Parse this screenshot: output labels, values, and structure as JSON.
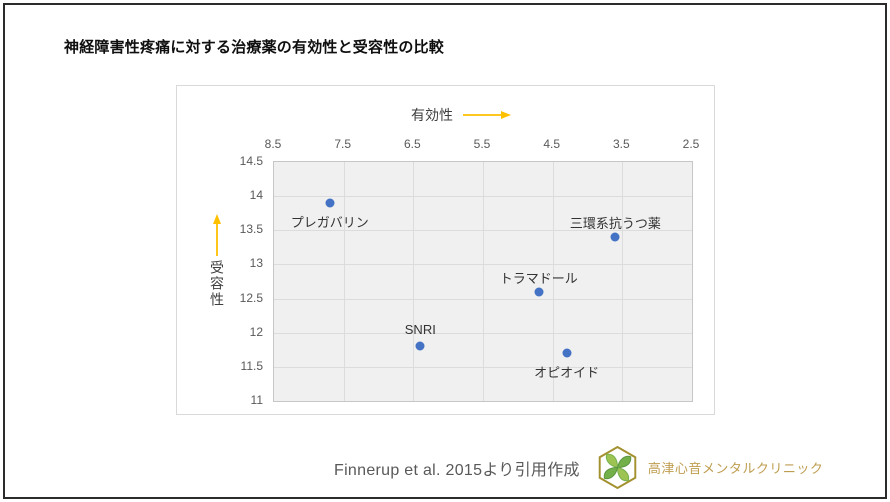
{
  "page": {
    "title": "神経障害性疼痛に対する治療薬の有効性と受容性の比較",
    "footer": {
      "source_text": "Finnerup et al. 2015より引用作成",
      "clinic_name": "高津心音メンタルクリニック"
    }
  },
  "colors": {
    "point": "#4472C4",
    "arrow": "#FFC000",
    "axis_text": "#595959",
    "plot_bg": "#f0f0f0",
    "gridline": "#dcdcdc",
    "chart_border": "#d9d9d9",
    "logo_gold": "#a3912f",
    "logo_green_light": "#9dc353",
    "logo_green_dark": "#74b04a"
  },
  "chart_data": {
    "type": "scatter",
    "title": "神経障害性疼痛に対する治療薬の有効性と受容性の比較",
    "xlabel": "有効性",
    "ylabel": "受容性",
    "x_axis": {
      "position": "top",
      "reversed": true,
      "range": [
        8.5,
        2.5
      ],
      "tick_labels": [
        "8.5",
        "7.5",
        "6.5",
        "5.5",
        "4.5",
        "3.5",
        "2.5"
      ]
    },
    "y_axis": {
      "position": "left",
      "range": [
        11,
        14.5
      ],
      "tick_labels": [
        "14.5",
        "14",
        "13.5",
        "13",
        "12.5",
        "12",
        "11.5",
        "11"
      ]
    },
    "grid": true,
    "legend": "none",
    "points": [
      {
        "label": "プレガバリン",
        "x": 7.7,
        "y": 13.9,
        "label_position": "below"
      },
      {
        "label": "SNRI",
        "x": 6.4,
        "y": 11.8,
        "label_position": "above"
      },
      {
        "label": "トラマドール",
        "x": 4.7,
        "y": 12.6,
        "label_position": "above"
      },
      {
        "label": "オピオイド",
        "x": 4.3,
        "y": 11.7,
        "label_position": "below"
      },
      {
        "label": "三環系抗うつ薬",
        "x": 3.6,
        "y": 13.4,
        "label_position": "above"
      }
    ]
  }
}
